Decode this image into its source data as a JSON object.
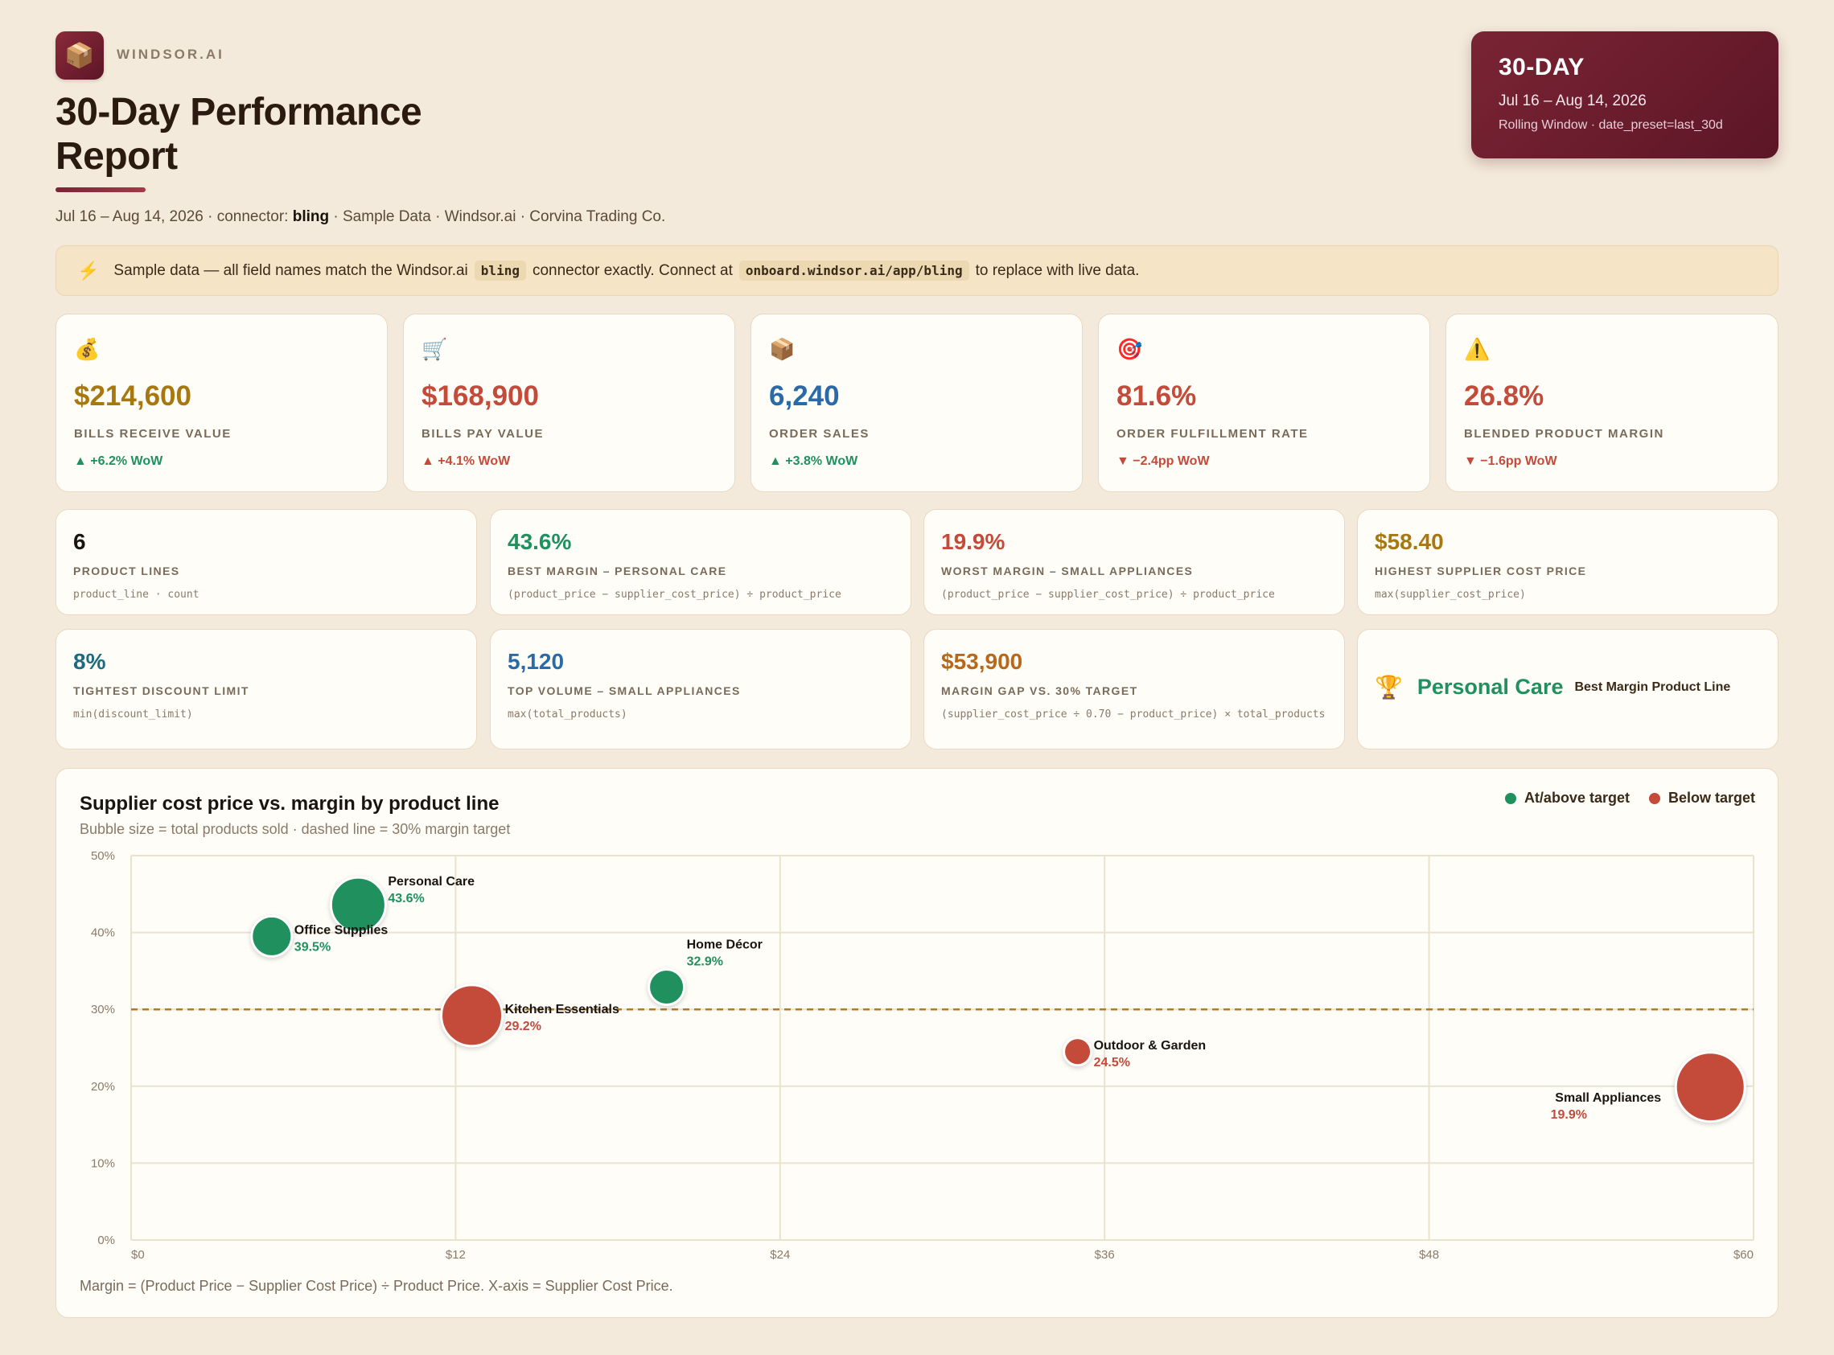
{
  "header": {
    "logo_icon": "package-icon",
    "brand": "WINDSOR.AI",
    "title": "30-Day Performance Report",
    "subtitle_prefix": "Jul 16 – Aug 14, 2026 · connector:",
    "subtitle_connector": "bling",
    "subtitle_suffix": "· Sample Data · Windsor.ai · Corvina Trading Co."
  },
  "badge": {
    "label": "30-DAY",
    "range": "Jul 16 – Aug 14, 2026",
    "detail": "Rolling Window · date_preset=last_30d"
  },
  "notice": {
    "icon": "lightning-icon",
    "text1": "Sample data — all field names match the Windsor.ai",
    "code1": "bling",
    "text2": "connector exactly. Connect at",
    "code2": "onboard.windsor.ai/app/bling",
    "text3": "to replace with live data."
  },
  "kpis": [
    {
      "icon": "money-bag-icon",
      "emoji": "💰",
      "value": "$214,600",
      "label": "BILLS RECEIVE VALUE",
      "delta": "▲ +6.2% WoW",
      "color": "#a87810",
      "delta_color": "#20905e"
    },
    {
      "icon": "cart-icon",
      "emoji": "🛒",
      "value": "$168,900",
      "label": "BILLS PAY VALUE",
      "delta": "▲ +4.1% WoW",
      "color": "#c44a3a",
      "delta_color": "#c44a3a"
    },
    {
      "icon": "package-icon",
      "emoji": "📦",
      "value": "6,240",
      "label": "ORDER SALES",
      "delta": "▲ +3.8% WoW",
      "color": "#2a6aa8",
      "delta_color": "#20905e"
    },
    {
      "icon": "target-icon",
      "emoji": "🎯",
      "value": "81.6%",
      "label": "ORDER FULFILLMENT RATE",
      "delta": "▼ −2.4pp WoW",
      "color": "#c44a3a",
      "delta_color": "#c44a3a"
    },
    {
      "icon": "warning-icon",
      "emoji": "⚠️",
      "value": "26.8%",
      "label": "BLENDED PRODUCT MARGIN",
      "delta": "▼ −1.6pp WoW",
      "color": "#c44a3a",
      "delta_color": "#c44a3a"
    }
  ],
  "metrics_row1": [
    {
      "value": "6",
      "label": "PRODUCT LINES",
      "formula": "product_line · count",
      "color": "#1a1410"
    },
    {
      "value": "43.6%",
      "label": "BEST MARGIN – PERSONAL CARE",
      "formula": "(product_price − supplier_cost_price) ÷ product_price",
      "color": "#20905e"
    },
    {
      "value": "19.9%",
      "label": "WORST MARGIN – SMALL APPLIANCES",
      "formula": "(product_price − supplier_cost_price) ÷ product_price",
      "color": "#c44a3a"
    },
    {
      "value": "$58.40",
      "label": "HIGHEST SUPPLIER COST PRICE",
      "formula": "max(supplier_cost_price)",
      "color": "#a87810"
    }
  ],
  "metrics_row2": [
    {
      "value": "8%",
      "label": "TIGHTEST DISCOUNT LIMIT",
      "formula": "min(discount_limit)",
      "color": "#1e6a80"
    },
    {
      "value": "5,120",
      "label": "TOP VOLUME – SMALL APPLIANCES",
      "formula": "max(total_products)",
      "color": "#2a6aa8"
    },
    {
      "value": "$53,900",
      "label": "MARGIN GAP VS. 30% TARGET",
      "formula": "(supplier_cost_price ÷ 0.70 − product_price) × total_products",
      "color": "#b86818"
    }
  ],
  "best_card": {
    "icon": "trophy-icon",
    "name": "Personal Care",
    "label": "Best Margin Product Line"
  },
  "chart": {
    "title": "Supplier cost price vs. margin by product line",
    "subtitle": "Bubble size = total products sold · dashed line = 30% margin target",
    "legend": [
      {
        "label": "At/above target",
        "color": "#20905e"
      },
      {
        "label": "Below target",
        "color": "#c44a3a"
      }
    ],
    "footer": "Margin = (Product Price − Supplier Cost Price) ÷ Product Price. X-axis = Supplier Cost Price."
  },
  "chart_data": {
    "type": "scatter",
    "title": "Supplier cost price vs. margin by product line",
    "x_ticks": [
      "$0",
      "$12",
      "$24",
      "$36",
      "$48",
      "$60"
    ],
    "y_ticks": [
      "0%",
      "10%",
      "20%",
      "30%",
      "40%",
      "50%"
    ],
    "xlim": [
      0,
      60
    ],
    "ylim": [
      0,
      50
    ],
    "target": 30,
    "grid": true,
    "legend_position": "top-right",
    "points": [
      {
        "name": "Personal Care",
        "x": 8.4,
        "y": 43.6,
        "label": "43.6%",
        "status": "above"
      },
      {
        "name": "Office Supplies",
        "x": 5.2,
        "y": 39.5,
        "label": "39.5%",
        "status": "above"
      },
      {
        "name": "Home Décor",
        "x": 19.8,
        "y": 32.9,
        "label": "32.9%",
        "status": "above"
      },
      {
        "name": "Kitchen Essentials",
        "x": 12.6,
        "y": 29.2,
        "label": "29.2%",
        "status": "below"
      },
      {
        "name": "Outdoor & Garden",
        "x": 35.0,
        "y": 24.5,
        "label": "24.5%",
        "status": "below"
      },
      {
        "name": "Small Appliances",
        "x": 58.4,
        "y": 19.9,
        "label": "19.9%",
        "status": "below"
      }
    ]
  }
}
